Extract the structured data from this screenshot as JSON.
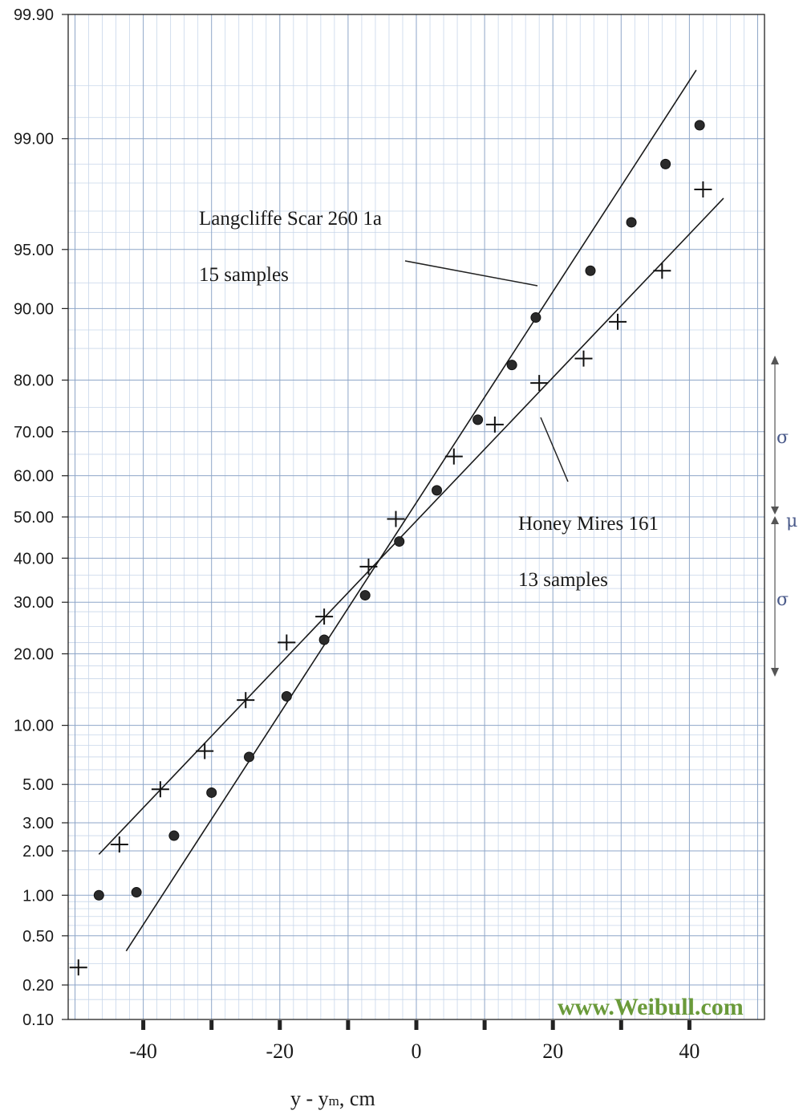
{
  "chart_data": {
    "type": "scatter",
    "xlabel": "y - y",
    "xlabel_sub": "m",
    "xlabel_unit": ", cm",
    "x_ticks": [
      "-40",
      "-20",
      "0",
      "20",
      "40"
    ],
    "y_scale": "normal-probability",
    "y_ticks": [
      "0.10",
      "0.20",
      "0.50",
      "1.00",
      "2.00",
      "3.00",
      "5.00",
      "10.00",
      "20.00",
      "30.00",
      "40.00",
      "50.00",
      "60.00",
      "70.00",
      "80.00",
      "90.00",
      "95.00",
      "99.00",
      "99.90"
    ],
    "xlim": [
      -51,
      51
    ],
    "ylim": [
      0.1,
      99.9
    ],
    "grid": true,
    "annotations": [
      {
        "lines": [
          "Langcliffe Scar 260 1a",
          "15 samples"
        ]
      },
      {
        "lines": [
          "Honey Mires 161",
          "13 samples"
        ]
      }
    ],
    "sigma_marks": {
      "sigma": "σ",
      "mu": "μ"
    },
    "watermark": "www.Weibull.com",
    "series": [
      {
        "marker": "dot",
        "points": [
          [
            -46.5,
            1.0
          ],
          [
            -41,
            1.05
          ],
          [
            -35.5,
            2.5
          ],
          [
            -30,
            4.5
          ],
          [
            -24.5,
            7.0
          ],
          [
            -19,
            13.5
          ],
          [
            -13.5,
            22.5
          ],
          [
            -7.5,
            31.5
          ],
          [
            -2.5,
            44
          ],
          [
            3,
            56.5
          ],
          [
            9,
            72.5
          ],
          [
            14,
            82.5
          ],
          [
            17.5,
            89
          ],
          [
            25.5,
            93.5
          ],
          [
            31.5,
            96.5
          ],
          [
            36.5,
            98.5
          ],
          [
            41.5,
            99.2
          ]
        ],
        "fit_line": [
          [
            -42.5,
            0.38
          ],
          [
            41,
            99.7
          ]
        ]
      },
      {
        "marker": "cross",
        "points": [
          [
            -49.5,
            0.28
          ],
          [
            -43.5,
            2.2
          ],
          [
            -37.5,
            4.7
          ],
          [
            -31,
            7.5
          ],
          [
            -25,
            13.0
          ],
          [
            -19,
            22.0
          ],
          [
            -13.5,
            27.0
          ],
          [
            -7,
            38.0
          ],
          [
            -3,
            49.5
          ],
          [
            5.5,
            64.5
          ],
          [
            11.5,
            71.5
          ],
          [
            18,
            79.5
          ],
          [
            24.5,
            83.5
          ],
          [
            29.5,
            88.5
          ],
          [
            36,
            93.5
          ],
          [
            42,
            97.8
          ]
        ],
        "fit_line": [
          [
            -46.5,
            1.9
          ],
          [
            45,
            97.5
          ]
        ]
      }
    ]
  }
}
